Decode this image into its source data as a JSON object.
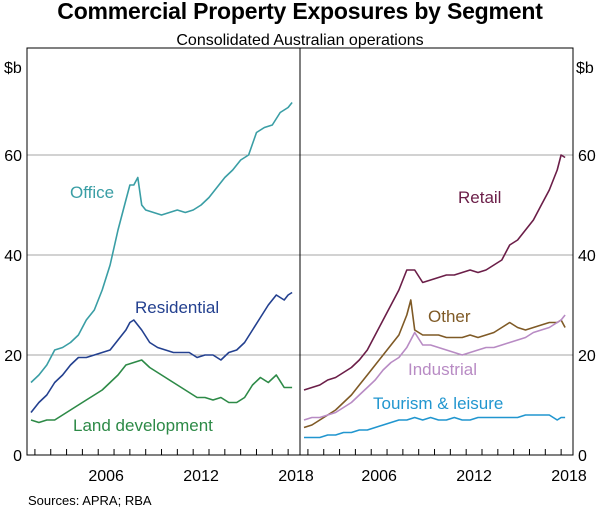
{
  "title": "Commercial Property Exposures by Segment",
  "subtitle": "Consolidated Australian operations",
  "source": "Sources: APRA; RBA",
  "chart_data": [
    {
      "type": "line",
      "panel": "left",
      "ylabel": "$b",
      "xlim": [
        2001.5,
        2018.75
      ],
      "ylim": [
        0,
        80
      ],
      "yticks": [
        0,
        20,
        40,
        60
      ],
      "xticks": [
        2006,
        2012,
        2018
      ],
      "series": [
        {
          "name": "Office",
          "color": "#3a9ea5",
          "x": [
            2001.75,
            2002.25,
            2002.75,
            2003.25,
            2003.75,
            2004.25,
            2004.75,
            2005.25,
            2005.75,
            2006.25,
            2006.75,
            2007.25,
            2007.75,
            2008.0,
            2008.25,
            2008.5,
            2008.75,
            2009.0,
            2009.5,
            2010.0,
            2010.5,
            2011.0,
            2011.5,
            2012.0,
            2012.5,
            2013.0,
            2013.5,
            2014.0,
            2014.5,
            2015.0,
            2015.5,
            2016.0,
            2016.5,
            2017.0,
            2017.5,
            2018.0,
            2018.25
          ],
          "values": [
            14.5,
            16,
            18,
            21,
            21.5,
            22.5,
            24,
            27,
            29,
            33,
            38,
            45,
            51,
            54,
            54,
            55.5,
            50,
            49,
            48.5,
            48,
            48.5,
            49,
            48.5,
            49,
            50,
            51.5,
            53.5,
            55.5,
            57,
            59,
            60,
            64.5,
            65.5,
            66,
            68.5,
            69.5,
            70.5
          ]
        },
        {
          "name": "Residential",
          "color": "#23408f",
          "x": [
            2001.75,
            2002.25,
            2002.75,
            2003.25,
            2003.75,
            2004.25,
            2004.75,
            2005.25,
            2005.75,
            2006.25,
            2006.75,
            2007.25,
            2007.75,
            2008.0,
            2008.25,
            2008.75,
            2009.25,
            2009.75,
            2010.25,
            2010.75,
            2011.25,
            2011.75,
            2012.25,
            2012.75,
            2013.25,
            2013.75,
            2014.25,
            2014.75,
            2015.25,
            2015.75,
            2016.25,
            2016.75,
            2017.25,
            2017.75,
            2018.0,
            2018.25
          ],
          "values": [
            8.5,
            10.5,
            12,
            14.5,
            16,
            18,
            19.5,
            19.5,
            20,
            20.5,
            21,
            23,
            25,
            26.5,
            27,
            25,
            22.5,
            21.5,
            21,
            20.5,
            20.5,
            20.5,
            19.5,
            20,
            20,
            19,
            20.5,
            21,
            22.5,
            25,
            27.5,
            30,
            32,
            31,
            32,
            32.5
          ]
        },
        {
          "name": "Land development",
          "color": "#2d8a47",
          "x": [
            2001.75,
            2002.25,
            2002.75,
            2003.25,
            2003.75,
            2004.25,
            2004.75,
            2005.25,
            2005.75,
            2006.25,
            2006.75,
            2007.25,
            2007.75,
            2008.25,
            2008.75,
            2009.25,
            2009.75,
            2010.25,
            2010.75,
            2011.25,
            2011.75,
            2012.25,
            2012.75,
            2013.25,
            2013.75,
            2014.25,
            2014.75,
            2015.25,
            2015.75,
            2016.25,
            2016.75,
            2017.25,
            2017.75,
            2018.0,
            2018.25
          ],
          "values": [
            7,
            6.5,
            7,
            7,
            8,
            9,
            10,
            11,
            12,
            13,
            14.5,
            16,
            18,
            18.5,
            19,
            17.5,
            16.5,
            15.5,
            14.5,
            13.5,
            12.5,
            11.5,
            11.5,
            11,
            11.5,
            10.5,
            10.5,
            11.5,
            14,
            15.5,
            14.5,
            16,
            13.5,
            13.5,
            13.5
          ]
        }
      ],
      "labels": [
        "Office",
        "Residential",
        "Land development"
      ]
    },
    {
      "type": "line",
      "panel": "right",
      "ylabel": "$b",
      "xlim": [
        2001.5,
        2018.75
      ],
      "ylim": [
        0,
        80
      ],
      "yticks": [
        0,
        20,
        40,
        60
      ],
      "xticks": [
        2006,
        2012,
        2018
      ],
      "series": [
        {
          "name": "Retail",
          "color": "#6b1e48",
          "x": [
            2001.75,
            2002.25,
            2002.75,
            2003.25,
            2003.75,
            2004.25,
            2004.75,
            2005.25,
            2005.75,
            2006.25,
            2006.75,
            2007.25,
            2007.75,
            2008.25,
            2008.75,
            2009.25,
            2009.75,
            2010.25,
            2010.75,
            2011.25,
            2011.75,
            2012.25,
            2012.75,
            2013.25,
            2013.75,
            2014.25,
            2014.75,
            2015.25,
            2015.75,
            2016.25,
            2016.75,
            2017.25,
            2017.75,
            2018.0,
            2018.25
          ],
          "values": [
            13,
            13.5,
            14,
            15,
            15.5,
            16.5,
            17.5,
            19,
            21,
            24,
            27,
            30,
            33,
            37,
            37,
            34.5,
            35,
            35.5,
            36,
            36,
            36.5,
            37,
            36.5,
            37,
            38,
            39,
            42,
            43,
            45,
            47,
            50,
            53,
            57,
            60,
            59.5
          ]
        },
        {
          "name": "Other",
          "color": "#7f5a26",
          "x": [
            2001.75,
            2002.25,
            2002.75,
            2003.25,
            2003.75,
            2004.25,
            2004.75,
            2005.25,
            2005.75,
            2006.25,
            2006.75,
            2007.25,
            2007.75,
            2008.25,
            2008.5,
            2008.75,
            2009.25,
            2009.75,
            2010.25,
            2010.75,
            2011.25,
            2011.75,
            2012.25,
            2012.75,
            2013.25,
            2013.75,
            2014.25,
            2014.75,
            2015.25,
            2015.75,
            2016.25,
            2016.75,
            2017.25,
            2017.75,
            2018.0,
            2018.25
          ],
          "values": [
            5.5,
            6,
            7,
            8,
            9,
            10.5,
            12,
            14,
            16,
            18,
            20,
            22,
            24,
            28,
            31,
            25,
            24,
            24,
            24,
            23.5,
            23.5,
            23.5,
            24,
            23.5,
            24,
            24.5,
            25.5,
            26.5,
            25.5,
            25,
            25.5,
            26,
            26.5,
            26.5,
            27,
            25.5
          ]
        },
        {
          "name": "Industrial",
          "color": "#b88bc4",
          "x": [
            2001.75,
            2002.25,
            2002.75,
            2003.25,
            2003.75,
            2004.25,
            2004.75,
            2005.25,
            2005.75,
            2006.25,
            2006.75,
            2007.25,
            2007.75,
            2008.25,
            2008.75,
            2009.25,
            2009.75,
            2010.25,
            2010.75,
            2011.25,
            2011.75,
            2012.25,
            2012.75,
            2013.25,
            2013.75,
            2014.25,
            2014.75,
            2015.25,
            2015.75,
            2016.25,
            2016.75,
            2017.25,
            2017.75,
            2018.0,
            2018.25
          ],
          "values": [
            7,
            7.5,
            7.5,
            8,
            8.5,
            9.5,
            10.5,
            12,
            13.5,
            15,
            17,
            18.5,
            19.5,
            21.5,
            24.5,
            22,
            22,
            21.5,
            21,
            20.5,
            20,
            20.5,
            21,
            21.5,
            21.5,
            22,
            22.5,
            23,
            23.5,
            24.5,
            25,
            25.5,
            26.5,
            27,
            28
          ]
        },
        {
          "name": "Tourism & leisure",
          "color": "#2196cf",
          "x": [
            2001.75,
            2002.25,
            2002.75,
            2003.25,
            2003.75,
            2004.25,
            2004.75,
            2005.25,
            2005.75,
            2006.25,
            2006.75,
            2007.25,
            2007.75,
            2008.25,
            2008.75,
            2009.25,
            2009.75,
            2010.25,
            2010.75,
            2011.25,
            2011.75,
            2012.25,
            2012.75,
            2013.25,
            2013.75,
            2014.25,
            2014.75,
            2015.25,
            2015.75,
            2016.25,
            2016.75,
            2017.25,
            2017.75,
            2018.0,
            2018.25
          ],
          "values": [
            3.5,
            3.5,
            3.5,
            4,
            4,
            4.5,
            4.5,
            5,
            5,
            5.5,
            6,
            6.5,
            7,
            7,
            7.5,
            7,
            7.5,
            7,
            7,
            7.5,
            7,
            7,
            7.5,
            7.5,
            7.5,
            7.5,
            7.5,
            7.5,
            8,
            8,
            8,
            8,
            7,
            7.5,
            7.5
          ]
        }
      ],
      "labels": [
        "Retail",
        "Other",
        "Industrial",
        "Tourism & leisure"
      ]
    }
  ]
}
